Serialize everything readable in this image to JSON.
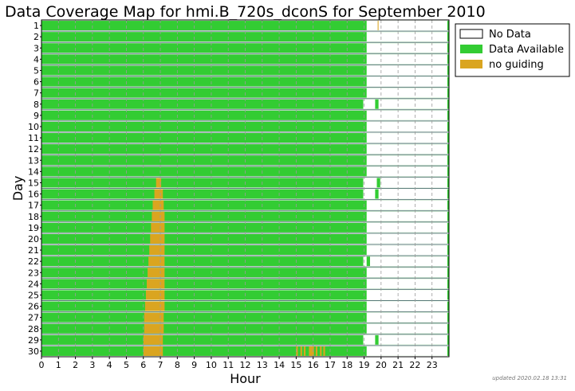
{
  "chart_data": {
    "type": "coverage-map",
    "title": "Data Coverage Map for hmi.B_720s_dconS for September 2010",
    "xlabel": "Hour",
    "ylabel": "Day",
    "xlim": [
      0,
      24
    ],
    "x_ticks": [
      "0",
      "1",
      "2",
      "3",
      "4",
      "5",
      "6",
      "7",
      "8",
      "9",
      "10",
      "11",
      "12",
      "13",
      "14",
      "15",
      "16",
      "17",
      "18",
      "19",
      "20",
      "21",
      "22",
      "23"
    ],
    "days": [
      "1",
      "2",
      "3",
      "4",
      "5",
      "6",
      "7",
      "8",
      "9",
      "10",
      "11",
      "12",
      "13",
      "14",
      "15",
      "16",
      "17",
      "18",
      "19",
      "20",
      "21",
      "22",
      "23",
      "24",
      "25",
      "26",
      "27",
      "28",
      "29",
      "30"
    ],
    "legend": {
      "position": "right",
      "items": [
        {
          "label": "No Data",
          "color": "#ffffff"
        },
        {
          "label": "Data Available",
          "color": "#33cc33"
        },
        {
          "label": "no guiding",
          "color": "#daa520"
        }
      ]
    },
    "default_state": "Data Available",
    "segments": [
      {
        "day": 1,
        "start": 19.15,
        "end": 23.9,
        "state": "No Data"
      },
      {
        "day": 1,
        "start": 19.8,
        "end": 19.85,
        "state": "no guiding"
      },
      {
        "day": 2,
        "start": 19.15,
        "end": 23.9,
        "state": "No Data"
      },
      {
        "day": 3,
        "start": 19.15,
        "end": 23.9,
        "state": "No Data"
      },
      {
        "day": 4,
        "start": 19.15,
        "end": 23.9,
        "state": "No Data"
      },
      {
        "day": 5,
        "start": 19.15,
        "end": 23.9,
        "state": "No Data"
      },
      {
        "day": 6,
        "start": 19.15,
        "end": 23.9,
        "state": "No Data"
      },
      {
        "day": 7,
        "start": 19.15,
        "end": 23.9,
        "state": "No Data"
      },
      {
        "day": 8,
        "start": 18.95,
        "end": 19.65,
        "state": "No Data"
      },
      {
        "day": 8,
        "start": 19.85,
        "end": 23.9,
        "state": "No Data"
      },
      {
        "day": 9,
        "start": 19.15,
        "end": 23.9,
        "state": "No Data"
      },
      {
        "day": 10,
        "start": 19.15,
        "end": 23.9,
        "state": "No Data"
      },
      {
        "day": 11,
        "start": 19.15,
        "end": 23.9,
        "state": "No Data"
      },
      {
        "day": 12,
        "start": 19.15,
        "end": 23.9,
        "state": "No Data"
      },
      {
        "day": 13,
        "start": 19.15,
        "end": 23.9,
        "state": "No Data"
      },
      {
        "day": 14,
        "start": 19.15,
        "end": 23.9,
        "state": "No Data"
      },
      {
        "day": 15,
        "start": 6.75,
        "end": 7.05,
        "state": "no guiding"
      },
      {
        "day": 15,
        "start": 18.95,
        "end": 19.75,
        "state": "No Data"
      },
      {
        "day": 15,
        "start": 19.95,
        "end": 23.9,
        "state": "No Data"
      },
      {
        "day": 16,
        "start": 6.65,
        "end": 7.15,
        "state": "no guiding"
      },
      {
        "day": 16,
        "start": 18.95,
        "end": 19.65,
        "state": "No Data"
      },
      {
        "day": 16,
        "start": 19.85,
        "end": 23.9,
        "state": "No Data"
      },
      {
        "day": 17,
        "start": 6.55,
        "end": 7.2,
        "state": "no guiding"
      },
      {
        "day": 17,
        "start": 19.15,
        "end": 23.9,
        "state": "No Data"
      },
      {
        "day": 18,
        "start": 6.5,
        "end": 7.25,
        "state": "no guiding"
      },
      {
        "day": 18,
        "start": 19.15,
        "end": 23.9,
        "state": "No Data"
      },
      {
        "day": 19,
        "start": 6.45,
        "end": 7.25,
        "state": "no guiding"
      },
      {
        "day": 19,
        "start": 19.15,
        "end": 23.9,
        "state": "No Data"
      },
      {
        "day": 20,
        "start": 6.4,
        "end": 7.25,
        "state": "no guiding"
      },
      {
        "day": 20,
        "start": 19.15,
        "end": 23.9,
        "state": "No Data"
      },
      {
        "day": 21,
        "start": 6.35,
        "end": 7.25,
        "state": "no guiding"
      },
      {
        "day": 21,
        "start": 19.15,
        "end": 23.9,
        "state": "No Data"
      },
      {
        "day": 22,
        "start": 6.3,
        "end": 7.25,
        "state": "no guiding"
      },
      {
        "day": 22,
        "start": 18.95,
        "end": 19.15,
        "state": "No Data"
      },
      {
        "day": 22,
        "start": 19.35,
        "end": 23.9,
        "state": "No Data"
      },
      {
        "day": 23,
        "start": 6.25,
        "end": 7.25,
        "state": "no guiding"
      },
      {
        "day": 23,
        "start": 19.15,
        "end": 23.9,
        "state": "No Data"
      },
      {
        "day": 24,
        "start": 6.2,
        "end": 7.25,
        "state": "no guiding"
      },
      {
        "day": 24,
        "start": 19.15,
        "end": 23.9,
        "state": "No Data"
      },
      {
        "day": 25,
        "start": 6.15,
        "end": 7.25,
        "state": "no guiding"
      },
      {
        "day": 25,
        "start": 19.15,
        "end": 23.9,
        "state": "No Data"
      },
      {
        "day": 26,
        "start": 6.1,
        "end": 7.25,
        "state": "no guiding"
      },
      {
        "day": 26,
        "start": 19.15,
        "end": 23.9,
        "state": "No Data"
      },
      {
        "day": 27,
        "start": 6.05,
        "end": 7.2,
        "state": "no guiding"
      },
      {
        "day": 27,
        "start": 19.15,
        "end": 23.9,
        "state": "No Data"
      },
      {
        "day": 28,
        "start": 6.05,
        "end": 7.2,
        "state": "no guiding"
      },
      {
        "day": 28,
        "start": 19.15,
        "end": 23.9,
        "state": "No Data"
      },
      {
        "day": 29,
        "start": 6.0,
        "end": 7.15,
        "state": "no guiding"
      },
      {
        "day": 29,
        "start": 18.95,
        "end": 19.65,
        "state": "No Data"
      },
      {
        "day": 29,
        "start": 19.85,
        "end": 23.9,
        "state": "No Data"
      },
      {
        "day": 30,
        "start": 6.0,
        "end": 7.15,
        "state": "no guiding"
      },
      {
        "day": 30,
        "start": 15.0,
        "end": 15.1,
        "state": "no guiding"
      },
      {
        "day": 30,
        "start": 15.25,
        "end": 15.35,
        "state": "no guiding"
      },
      {
        "day": 30,
        "start": 15.45,
        "end": 15.55,
        "state": "no guiding"
      },
      {
        "day": 30,
        "start": 15.75,
        "end": 16.05,
        "state": "no guiding"
      },
      {
        "day": 30,
        "start": 16.15,
        "end": 16.25,
        "state": "no guiding"
      },
      {
        "day": 30,
        "start": 16.4,
        "end": 16.5,
        "state": "no guiding"
      },
      {
        "day": 30,
        "start": 16.6,
        "end": 16.7,
        "state": "no guiding"
      },
      {
        "day": 30,
        "start": 19.15,
        "end": 23.9,
        "state": "No Data"
      }
    ],
    "vertical_grid": "dashed at each hour"
  },
  "updated_stamp": "updated 2020.02.18 13:31"
}
